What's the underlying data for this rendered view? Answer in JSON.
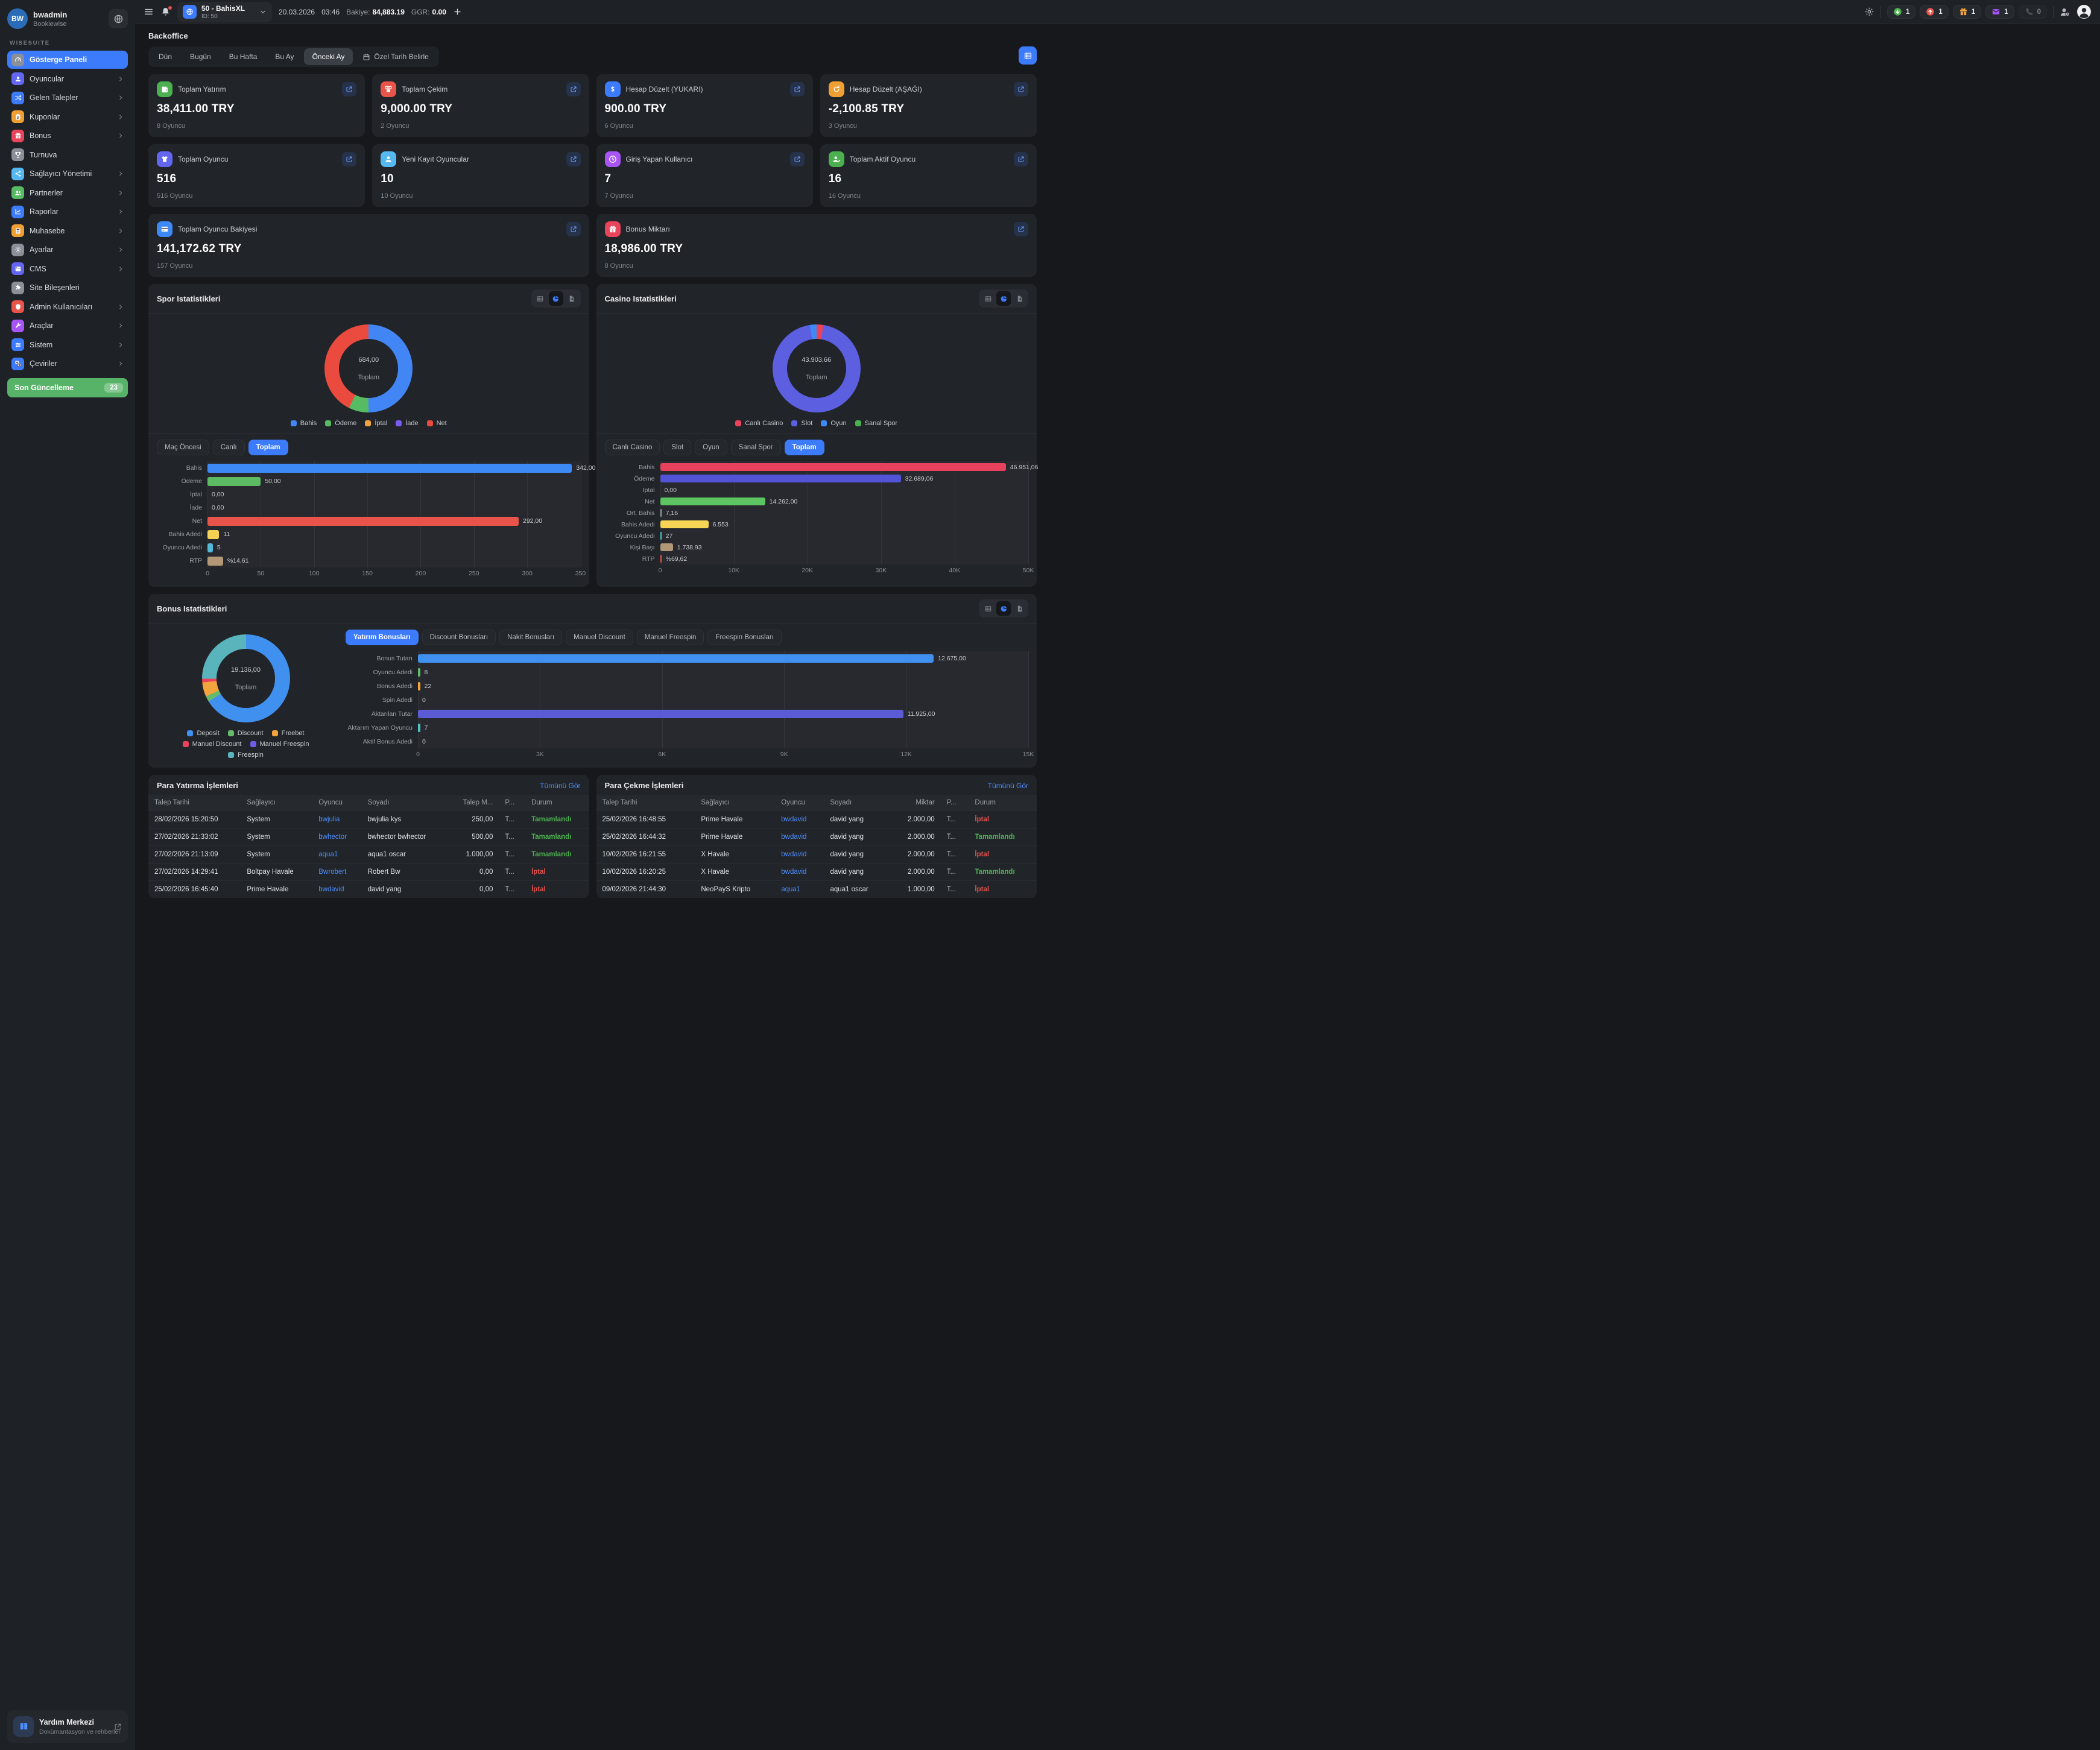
{
  "topbar": {
    "brand": {
      "name": "50 - BahisXL",
      "id_label": "ID: 50"
    },
    "date": "20.03.2026",
    "time": "03:46",
    "balance_label": "Bakiye:",
    "balance_value": "84,883.19",
    "ggr_label": "GGR:",
    "ggr_value": "0.00",
    "badges": [
      {
        "icon": "arrow-down-circle",
        "color": "#4caf50",
        "count": "1",
        "dim": false
      },
      {
        "icon": "arrow-up-circle",
        "color": "#e8544a",
        "count": "1",
        "dim": false
      },
      {
        "icon": "gift",
        "color": "#f2a33c",
        "count": "1",
        "dim": false
      },
      {
        "icon": "mail",
        "color": "#a855f7",
        "count": "1",
        "dim": false
      },
      {
        "icon": "phone",
        "color": "#8a8f95",
        "count": "0",
        "dim": true
      }
    ]
  },
  "sidebar": {
    "user": {
      "initials": "BW",
      "name": "bwadmin",
      "org": "Bookiewise"
    },
    "section_label": "WISESUITE",
    "items": [
      {
        "label": "Gösterge Paneli",
        "icon": "gauge",
        "color": "#8a8f98",
        "active": true,
        "chevron": false
      },
      {
        "label": "Oyuncular",
        "icon": "user",
        "color": "#6366f1",
        "active": false,
        "chevron": true
      },
      {
        "label": "Gelen Talepler",
        "icon": "shuffle",
        "color": "#3d7bfd",
        "active": false,
        "chevron": true
      },
      {
        "label": "Kuponlar",
        "icon": "clipboard",
        "color": "#f09f33",
        "active": false,
        "chevron": true
      },
      {
        "label": "Bonus",
        "icon": "gift",
        "color": "#e8445c",
        "active": false,
        "chevron": true
      },
      {
        "label": "Turnuva",
        "icon": "trophy",
        "color": "#8a8f98",
        "active": false,
        "chevron": false
      },
      {
        "label": "Sağlayıcı Yönetimi",
        "icon": "share",
        "color": "#56b8f0",
        "active": false,
        "chevron": true
      },
      {
        "label": "Partnerler",
        "icon": "users",
        "color": "#57bb63",
        "active": false,
        "chevron": true
      },
      {
        "label": "Raporlar",
        "icon": "chart",
        "color": "#3d7bfd",
        "active": false,
        "chevron": true
      },
      {
        "label": "Muhasebe",
        "icon": "calculator",
        "color": "#f09f33",
        "active": false,
        "chevron": true
      },
      {
        "label": "Ayarlar",
        "icon": "gear",
        "color": "#8a8f98",
        "active": false,
        "chevron": true
      },
      {
        "label": "CMS",
        "icon": "window",
        "color": "#6366f1",
        "active": false,
        "chevron": true
      },
      {
        "label": "Site Bileşenleri",
        "icon": "puzzle",
        "color": "#8a8f98",
        "active": false,
        "chevron": false
      },
      {
        "label": "Admin Kullanıcıları",
        "icon": "shield",
        "color": "#e8544a",
        "active": false,
        "chevron": true
      },
      {
        "label": "Araçlar",
        "icon": "wrench",
        "color": "#a855f7",
        "active": false,
        "chevron": true
      },
      {
        "label": "Sistem",
        "icon": "sliders",
        "color": "#3d7bfd",
        "active": false,
        "chevron": true
      },
      {
        "label": "Çeviriler",
        "icon": "translate",
        "color": "#3d7bfd",
        "active": false,
        "chevron": true
      }
    ],
    "update_button": {
      "label": "Son Güncelleme",
      "badge": "23"
    },
    "help": {
      "title": "Yardım Merkezi",
      "subtitle": "Dokümantasyon ve rehberler"
    }
  },
  "page": {
    "title": "Backoffice"
  },
  "filters": {
    "tabs": [
      "Dün",
      "Bugün",
      "Bu Hafta",
      "Bu Ay",
      "Önceki Ay"
    ],
    "active": "Önceki Ay",
    "custom_label": "Özel Tarih Belirle"
  },
  "stat_cards": [
    {
      "icon": "wallet",
      "color": "#4caf50",
      "label": "Toplam Yatırım",
      "value": "38,411.00 TRY",
      "sub": "8 Oyuncu",
      "wide": false
    },
    {
      "icon": "atm",
      "color": "#e8544a",
      "label": "Toplam Çekim",
      "value": "9,000.00 TRY",
      "sub": "2 Oyuncu",
      "wide": false
    },
    {
      "icon": "dollar",
      "color": "#3d7bfd",
      "label": "Hesap Düzelt (YUKARI)",
      "value": "900.00 TRY",
      "sub": "6 Oyuncu",
      "wide": false
    },
    {
      "icon": "refresh",
      "color": "#f09f33",
      "label": "Hesap Düzelt (AŞAĞI)",
      "value": "-2,100.85 TRY",
      "sub": "3 Oyuncu",
      "wide": false
    },
    {
      "icon": "tshirt",
      "color": "#6366f1",
      "label": "Toplam Oyuncu",
      "value": "516",
      "sub": "516 Oyuncu",
      "wide": false
    },
    {
      "icon": "user",
      "color": "#56b8f0",
      "label": "Yeni Kayıt Oyuncular",
      "value": "10",
      "sub": "10 Oyuncu",
      "wide": false
    },
    {
      "icon": "clock",
      "color": "#a855f7",
      "label": "Giriş Yapan Kullanıcı",
      "value": "7",
      "sub": "7 Oyuncu",
      "wide": false
    },
    {
      "icon": "user-check",
      "color": "#4caf50",
      "label": "Toplam Aktif Oyuncu",
      "value": "16",
      "sub": "16 Oyuncu",
      "wide": false
    },
    {
      "icon": "card",
      "color": "#3d8af7",
      "label": "Toplam Oyuncu Bakiyesi",
      "value": "141,172.62 TRY",
      "sub": "157 Oyuncu",
      "wide": true
    },
    {
      "icon": "gift",
      "color": "#e8445c",
      "label": "Bonus Miktarı",
      "value": "18,986.00 TRY",
      "sub": "8 Oyuncu",
      "wide": true
    }
  ],
  "panels": {
    "sport": {
      "title": "Spor Istatistikleri",
      "tabs": [
        "Maç Öncesi",
        "Canlı",
        "Toplam"
      ],
      "active_tab": "Toplam"
    },
    "casino": {
      "title": "Casino Istatistikleri",
      "tabs": [
        "Canlı Casino",
        "Slot",
        "Oyun",
        "Sanal Spor",
        "Toplam"
      ],
      "active_tab": "Toplam"
    },
    "bonus": {
      "title": "Bonus Istatistikleri",
      "tabs": [
        "Yatırım Bonusları",
        "Discount Bonusları",
        "Nakit Bonusları",
        "Manuel Discount",
        "Manuel Freespin",
        "Freespin Bonusları"
      ],
      "active_tab": "Yatırım Bonusları"
    }
  },
  "chart_data": [
    {
      "id": "sport-donut",
      "type": "pie",
      "title": "Spor Istatistikleri",
      "center_value": "684,00",
      "center_label": "Toplam",
      "labels": [
        "Bahis",
        "Ödeme",
        "İptal",
        "İade",
        "Net"
      ],
      "values": [
        342,
        50,
        0,
        0,
        292
      ],
      "colors": [
        "#4286f5",
        "#57bb63",
        "#f2a33c",
        "#7b5cf0",
        "#ea4b3e"
      ],
      "legend_position": "bottom"
    },
    {
      "id": "sport-bars",
      "type": "bar",
      "orientation": "horizontal",
      "categories": [
        "Bahis",
        "Ödeme",
        "İptal",
        "İade",
        "Net",
        "Bahis Adedi",
        "Oyuncu Adedi",
        "RTP"
      ],
      "values": [
        342,
        50,
        0,
        0,
        292,
        11,
        5,
        14.61
      ],
      "value_labels": [
        "342,00",
        "50,00",
        "0,00",
        "0,00",
        "292,00",
        "11",
        "5",
        "%14,61"
      ],
      "colors": [
        "#3d8af7",
        "#5cbb62",
        "#f2a33c",
        "#7b5cf0",
        "#e8544a",
        "#f7d154",
        "#56b8d8",
        "#b29876"
      ],
      "xlim": [
        0,
        350
      ],
      "ticks": [
        "0",
        "50",
        "100",
        "150",
        "200",
        "250",
        "300",
        "350"
      ],
      "grid": true
    },
    {
      "id": "casino-donut",
      "type": "pie",
      "title": "Casino Istatistikleri",
      "center_value": "43.903,66",
      "center_label": "Toplam",
      "labels": [
        "Canlı Casino",
        "Slot",
        "Oyun",
        "Sanal Spor"
      ],
      "values": [
        1100,
        41703.66,
        1100,
        0
      ],
      "colors": [
        "#e8435a",
        "#5b5fe0",
        "#3d8af7",
        "#4caf50"
      ],
      "legend_position": "bottom"
    },
    {
      "id": "casino-bars",
      "type": "bar",
      "orientation": "horizontal",
      "categories": [
        "Bahis",
        "Ödeme",
        "İptal",
        "Net",
        "Ort. Bahis",
        "Bahis Adedi",
        "Oyuncu Adedi",
        "Kişi Başı",
        "RTP"
      ],
      "values": [
        46951.06,
        32689.06,
        0,
        14262,
        7.16,
        6553,
        27,
        1738.93,
        69.62
      ],
      "value_labels": [
        "46.951,06",
        "32.689,06",
        "0,00",
        "14.262,00",
        "7,16",
        "6.553",
        "27",
        "1.738,93",
        "%69,62"
      ],
      "colors": [
        "#e8415c",
        "#5353d8",
        "#f2a33c",
        "#5cc561",
        "#9aa0a6",
        "#f7d554",
        "#4fc3c7",
        "#b29876",
        "#e8544a"
      ],
      "xlim": [
        0,
        50000
      ],
      "ticks": [
        "0",
        "10K",
        "20K",
        "30K",
        "40K",
        "50K"
      ],
      "grid": true
    },
    {
      "id": "bonus-donut",
      "type": "pie",
      "title": "Bonus Istatistikleri",
      "center_value": "19.136,00",
      "center_label": "Toplam",
      "labels": [
        "Deposit",
        "Discount",
        "Freebet",
        "Manuel Discount",
        "Manuel Freespin",
        "Freespin"
      ],
      "values": [
        12675,
        400,
        1000,
        260,
        0,
        4801
      ],
      "colors": [
        "#4090f0",
        "#66bb6a",
        "#f5a33c",
        "#e8435a",
        "#6f5ce8",
        "#5ab4bc"
      ],
      "legend_position": "bottom"
    },
    {
      "id": "bonus-bars",
      "type": "bar",
      "orientation": "horizontal",
      "categories": [
        "Bonus Tutarı",
        "Oyuncu Adedi",
        "Bonus Adedi",
        "Spin Adedi",
        "Aktarılan Tutar",
        "Aktarım Yapan Oyuncu",
        "Aktif Bonus Adedi"
      ],
      "values": [
        12675,
        8,
        22,
        0,
        11925,
        7,
        0
      ],
      "value_labels": [
        "12.675,00",
        "8",
        "22",
        "0",
        "11.925,00",
        "7",
        "0"
      ],
      "colors": [
        "#4090f0",
        "#66bb6a",
        "#f5a33c",
        "#9aa0a6",
        "#5b5bd6",
        "#4fc3c7",
        "#9aa0a6"
      ],
      "xlim": [
        0,
        15000
      ],
      "ticks": [
        "0",
        "3K",
        "6K",
        "9K",
        "12K",
        "15K"
      ],
      "grid": true
    }
  ],
  "tables": {
    "deposits": {
      "title": "Para Yatırma İşlemleri",
      "link": "Tümünü Gör",
      "columns": [
        "Talep Tarihi",
        "Sağlayıcı",
        "Oyuncu",
        "Soyadı",
        "Talep M...",
        "P...",
        "Durum"
      ],
      "rows": [
        {
          "date": "28/02/2026 15:20:50",
          "provider": "System",
          "player": "bwjulia",
          "surname": "bwjulia kys",
          "amount": "250,00",
          "p": "T...",
          "status": "Tamamlandı",
          "status_type": "success"
        },
        {
          "date": "27/02/2026 21:33:02",
          "provider": "System",
          "player": "bwhector",
          "surname": "bwhector bwhector",
          "amount": "500,00",
          "p": "T...",
          "status": "Tamamlandı",
          "status_type": "success"
        },
        {
          "date": "27/02/2026 21:13:09",
          "provider": "System",
          "player": "aqua1",
          "surname": "aqua1 oscar",
          "amount": "1.000,00",
          "p": "T...",
          "status": "Tamamlandı",
          "status_type": "success"
        },
        {
          "date": "27/02/2026 14:29:41",
          "provider": "Boltpay Havale",
          "player": "Bwrobert",
          "surname": "Robert Bw",
          "amount": "0,00",
          "p": "T...",
          "status": "İptal",
          "status_type": "cancel"
        },
        {
          "date": "25/02/2026 16:45:40",
          "provider": "Prime Havale",
          "player": "bwdavid",
          "surname": "david yang",
          "amount": "0,00",
          "p": "T...",
          "status": "İptal",
          "status_type": "cancel"
        }
      ]
    },
    "withdrawals": {
      "title": "Para Çekme İşlemleri",
      "link": "Tümünü Gör",
      "columns": [
        "Talep Tarihi",
        "Sağlayıcı",
        "Oyuncu",
        "Soyadı",
        "Miktar",
        "P...",
        "Durum"
      ],
      "rows": [
        {
          "date": "25/02/2026 16:48:55",
          "provider": "Prime Havale",
          "player": "bwdavid",
          "surname": "david yang",
          "amount": "2.000,00",
          "p": "T...",
          "status": "İptal",
          "status_type": "cancel"
        },
        {
          "date": "25/02/2026 16:44:32",
          "provider": "Prime Havale",
          "player": "bwdavid",
          "surname": "david yang",
          "amount": "2.000,00",
          "p": "T...",
          "status": "Tamamlandı",
          "status_type": "success"
        },
        {
          "date": "10/02/2026 16:21:55",
          "provider": "X Havale",
          "player": "bwdavid",
          "surname": "david yang",
          "amount": "2.000,00",
          "p": "T...",
          "status": "İptal",
          "status_type": "cancel"
        },
        {
          "date": "10/02/2026 16:20:25",
          "provider": "X Havale",
          "player": "bwdavid",
          "surname": "david yang",
          "amount": "2.000,00",
          "p": "T...",
          "status": "Tamamlandı",
          "status_type": "success"
        },
        {
          "date": "09/02/2026 21:44:30",
          "provider": "NeoPayS Kripto",
          "player": "aqua1",
          "surname": "aqua1 oscar",
          "amount": "1.000,00",
          "p": "T...",
          "status": "İptal",
          "status_type": "cancel"
        }
      ]
    }
  }
}
